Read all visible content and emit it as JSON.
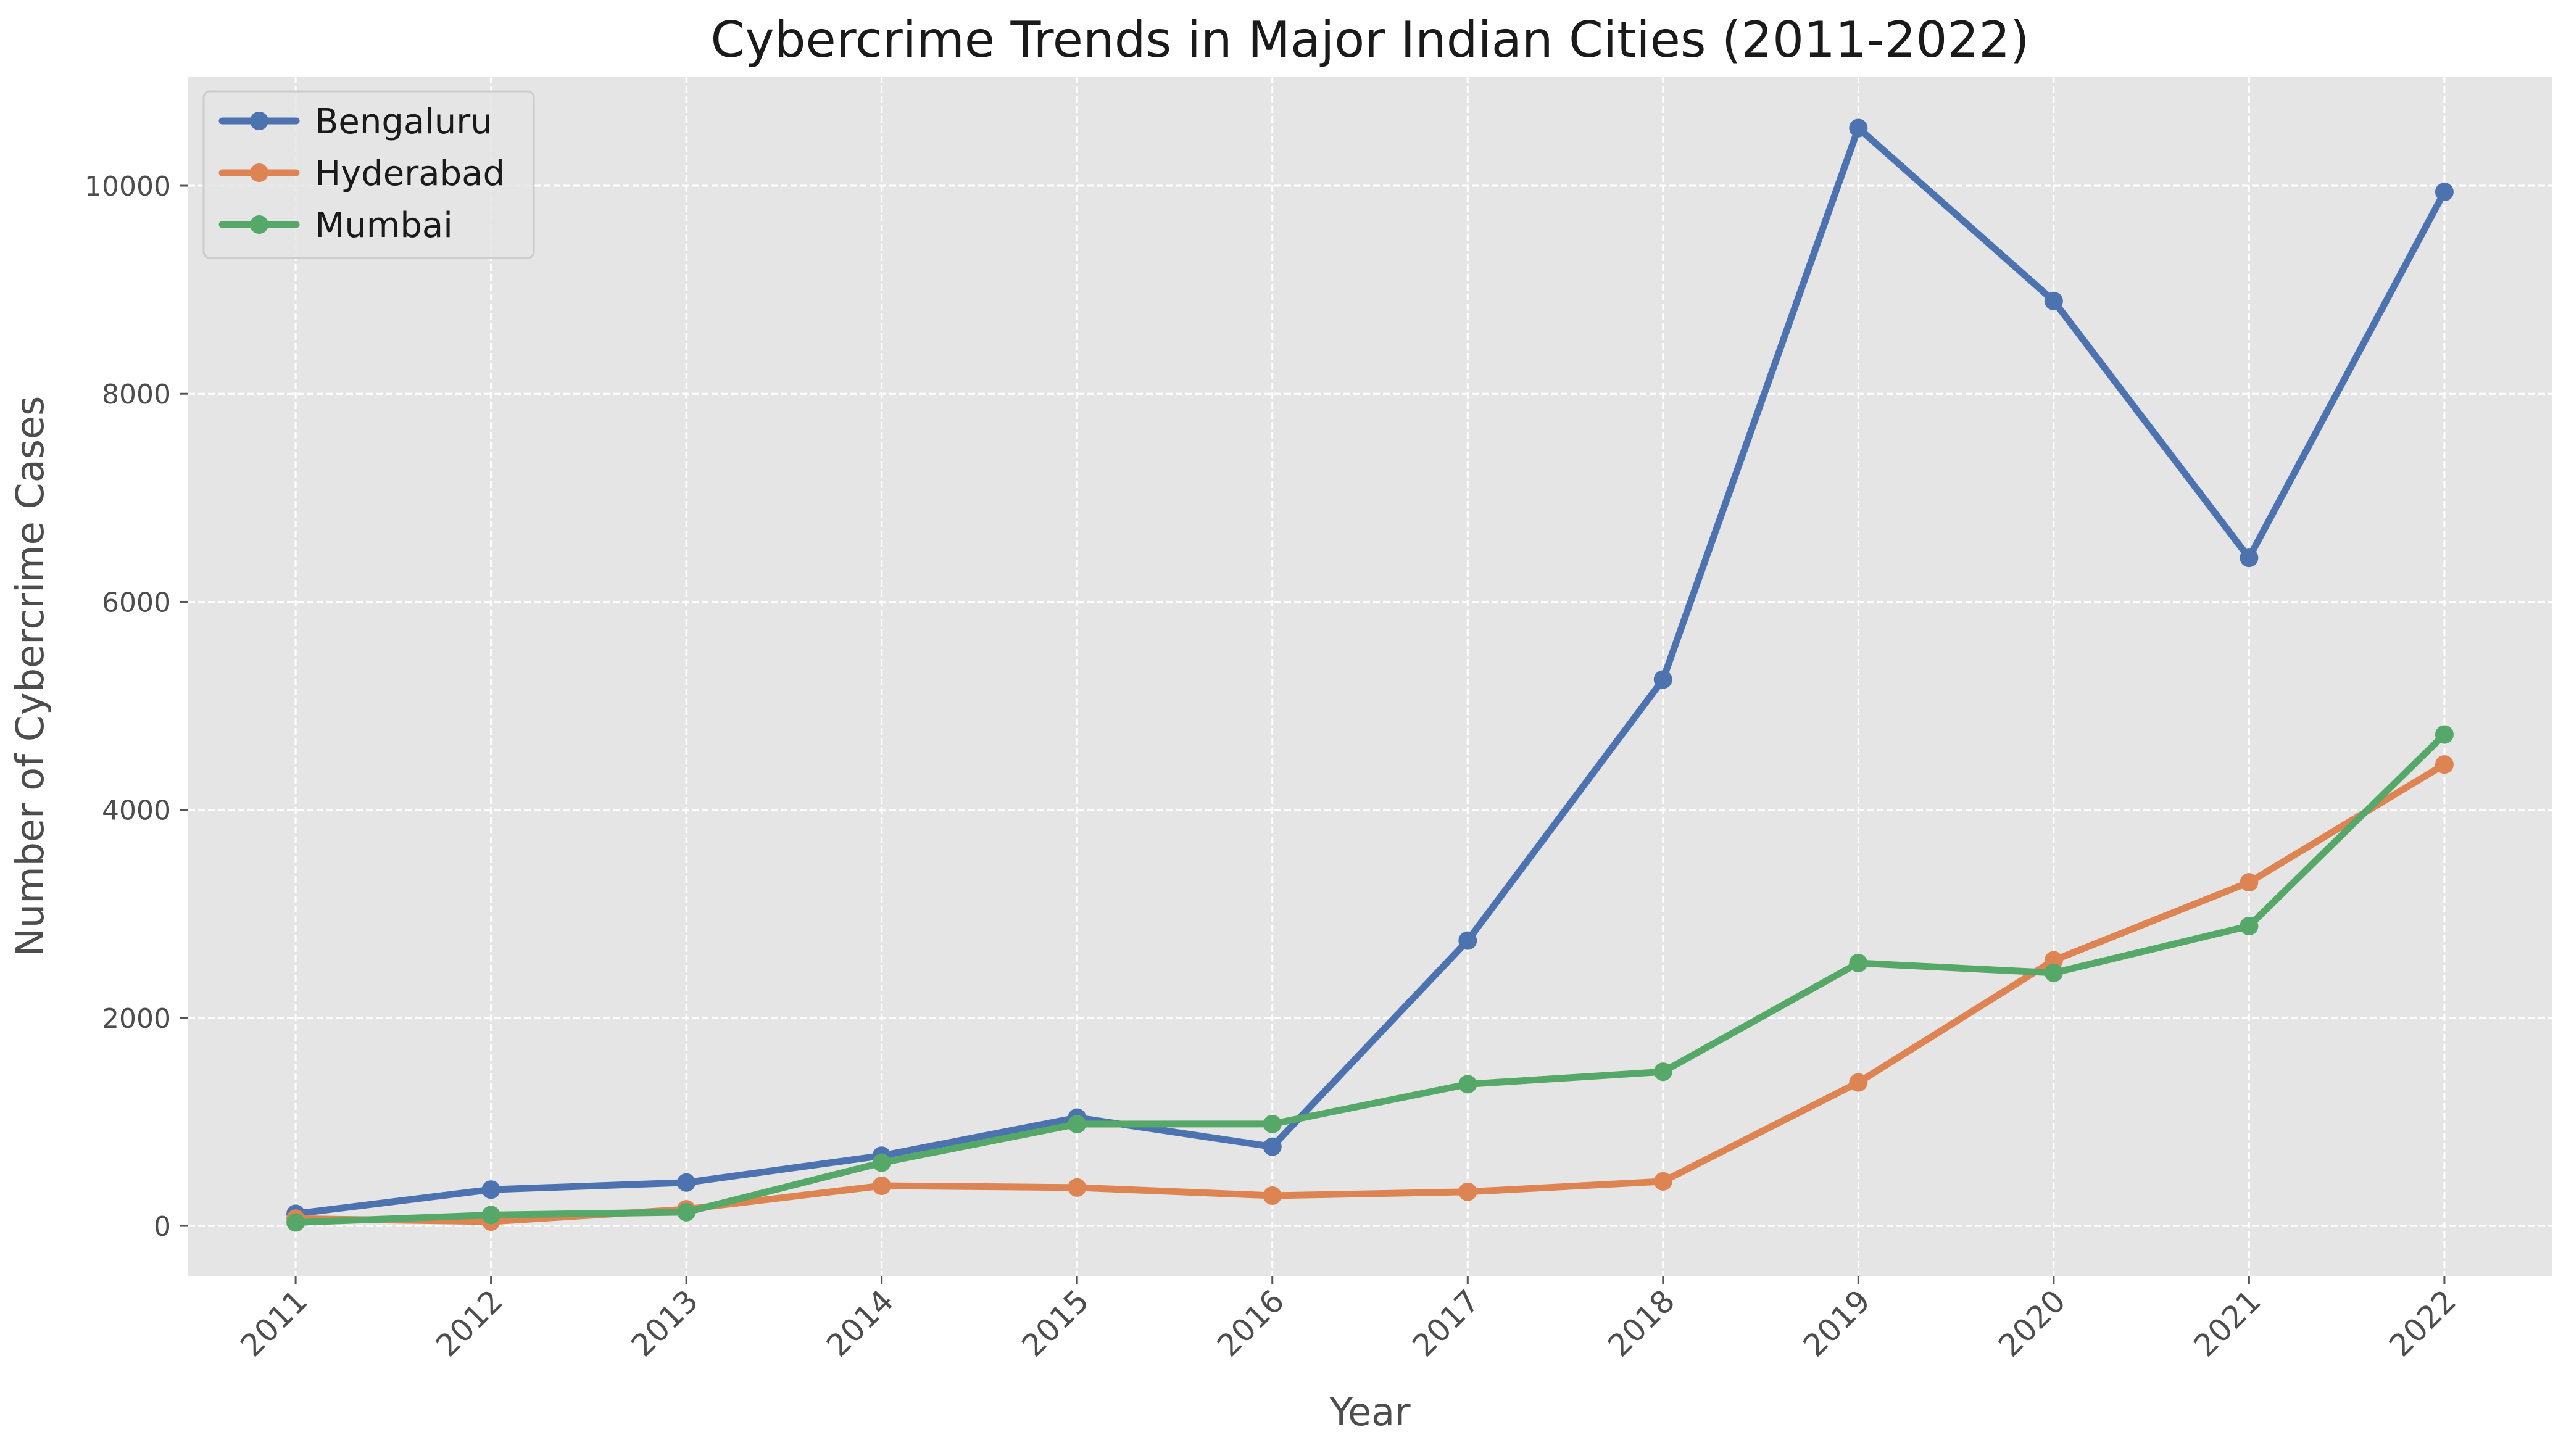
{
  "chart_data": {
    "type": "line",
    "title": "Cybercrime Trends in Major Indian Cities (2011-2022)",
    "xlabel": "Year",
    "ylabel": "Number of Cybercrime Cases",
    "x": [
      "2011",
      "2012",
      "2013",
      "2014",
      "2015",
      "2016",
      "2017",
      "2018",
      "2019",
      "2020",
      "2021",
      "2022"
    ],
    "xlim": [
      2010.45,
      2022.55
    ],
    "ylim": [
      -480,
      11050
    ],
    "yticks": [
      0,
      2000,
      4000,
      6000,
      8000,
      10000
    ],
    "ytick_labels": [
      "0",
      "2000",
      "4000",
      "6000",
      "8000",
      "10000"
    ],
    "grid": true,
    "legend_position": "top-left",
    "series": [
      {
        "name": "Bengaluru",
        "color": "#4c72b0",
        "values": [
          117,
          349,
          417,
          675,
          1041,
          762,
          2743,
          5253,
          10555,
          8892,
          6423,
          9940
        ]
      },
      {
        "name": "Hyderabad",
        "color": "#dd8452",
        "values": [
          70,
          42,
          160,
          386,
          369,
          291,
          328,
          428,
          1379,
          2553,
          3303,
          4436
        ]
      },
      {
        "name": "Mumbai",
        "color": "#55a868",
        "values": [
          33,
          105,
          132,
          608,
          979,
          980,
          1362,
          1482,
          2527,
          2433,
          2883,
          4724
        ]
      }
    ]
  }
}
